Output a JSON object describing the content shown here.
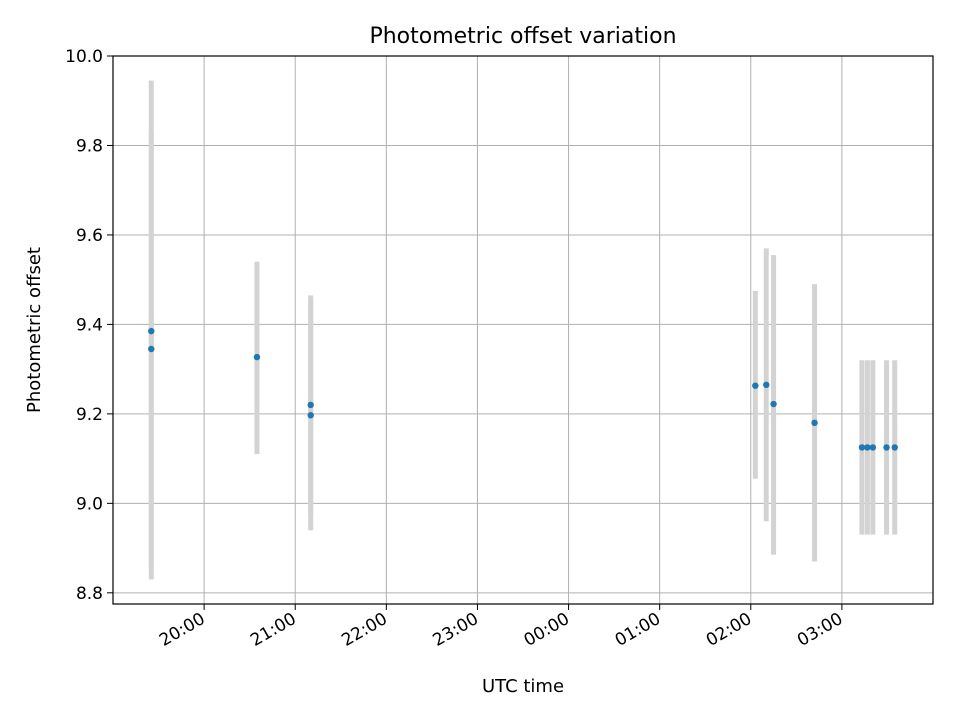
{
  "chart_data": {
    "type": "scatter",
    "title": "Photometric offset variation",
    "xlabel": "UTC time",
    "ylabel": "Photometric offset",
    "ylim": [
      8.775,
      10.0
    ],
    "xlim_hours": [
      19.0,
      28.0
    ],
    "x_tick_hours": [
      20,
      21,
      22,
      23,
      24,
      25,
      26,
      27
    ],
    "x_tick_labels": [
      "20:00",
      "21:00",
      "22:00",
      "23:00",
      "00:00",
      "01:00",
      "02:00",
      "03:00"
    ],
    "y_ticks": [
      8.8,
      9.0,
      9.2,
      9.4,
      9.6,
      9.8,
      10.0
    ],
    "y_tick_labels": [
      "8.8",
      "9.0",
      "9.2",
      "9.4",
      "9.6",
      "9.8",
      "10.0"
    ],
    "grid": true,
    "marker_color": "#1f77b4",
    "errorbar_color": "#d3d3d3",
    "points": [
      {
        "hour": 19.42,
        "y": 9.385,
        "err_low": 8.86,
        "err_high": 9.83
      },
      {
        "hour": 19.42,
        "y": 9.345,
        "err_low": 8.83,
        "err_high": 9.945
      },
      {
        "hour": 20.58,
        "y": 9.327,
        "err_low": 9.11,
        "err_high": 9.54
      },
      {
        "hour": 21.17,
        "y": 9.22,
        "err_low": 8.975,
        "err_high": 9.465
      },
      {
        "hour": 21.17,
        "y": 9.197,
        "err_low": 8.94,
        "err_high": 9.455
      },
      {
        "hour": 26.05,
        "y": 9.263,
        "err_low": 9.055,
        "err_high": 9.475
      },
      {
        "hour": 26.17,
        "y": 9.265,
        "err_low": 8.96,
        "err_high": 9.57
      },
      {
        "hour": 26.25,
        "y": 9.222,
        "err_low": 8.885,
        "err_high": 9.555
      },
      {
        "hour": 26.7,
        "y": 9.18,
        "err_low": 8.87,
        "err_high": 9.49
      },
      {
        "hour": 27.22,
        "y": 9.125,
        "err_low": 8.93,
        "err_high": 9.32
      },
      {
        "hour": 27.28,
        "y": 9.125,
        "err_low": 8.93,
        "err_high": 9.32
      },
      {
        "hour": 27.34,
        "y": 9.125,
        "err_low": 8.93,
        "err_high": 9.32
      },
      {
        "hour": 27.49,
        "y": 9.125,
        "err_low": 8.93,
        "err_high": 9.32
      },
      {
        "hour": 27.58,
        "y": 9.125,
        "err_low": 8.93,
        "err_high": 9.32
      }
    ]
  }
}
